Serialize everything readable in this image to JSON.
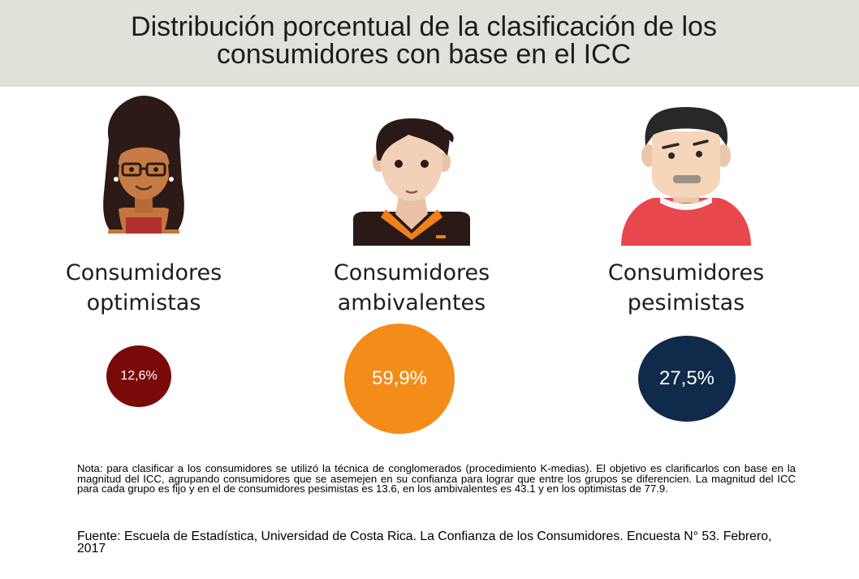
{
  "title": {
    "line1": "Distribución porcentual de la clasificación de los",
    "line2": "consumidores con base en el ICC"
  },
  "chart_data": {
    "type": "bubble",
    "title": "Distribución porcentual de la clasificación de los consumidores con base en el ICC",
    "categories": [
      "Consumidores optimistas",
      "Consumidores ambivalentes",
      "Consumidores pesimistas"
    ],
    "values": [
      12.6,
      59.9,
      27.5
    ],
    "value_labels": [
      "12,6%",
      "59,9%",
      "27,5%"
    ],
    "colors": [
      "#7a0a0a",
      "#f48c1a",
      "#0f2a4a"
    ],
    "unit": "%"
  },
  "groups": [
    {
      "label_line1": "Consumidores",
      "label_line2": "optimistas",
      "value_label": "12,6%",
      "icon": "optimistic-woman-icon"
    },
    {
      "label_line1": "Consumidores",
      "label_line2": "ambivalentes",
      "value_label": "59,9%",
      "icon": "ambivalent-man-icon"
    },
    {
      "label_line1": "Consumidores",
      "label_line2": "pesimistas",
      "value_label": "27,5%",
      "icon": "pessimistic-man-icon"
    }
  ],
  "note": "Nota: para clasificar a los consumidores se utilizó la técnica de conglomerados (procedimiento K-medias). El objetivo es clarificarlos con base en la magnitud del ICC, agrupando consumidores que se asemejen en su confianza para lograr que entre los grupos se diferencien. La magnitud del ICC para cada grupo es fijo y en el de consumidores pesimistas es 13.6, en los ambivalentes es 43.1 y en los optimistas de 77.9.",
  "source": "Fuente: Escuela de Estadística, Universidad de Costa Rica. La Confianza de los Consumidores. Encuesta N° 53. Febrero, 2017"
}
